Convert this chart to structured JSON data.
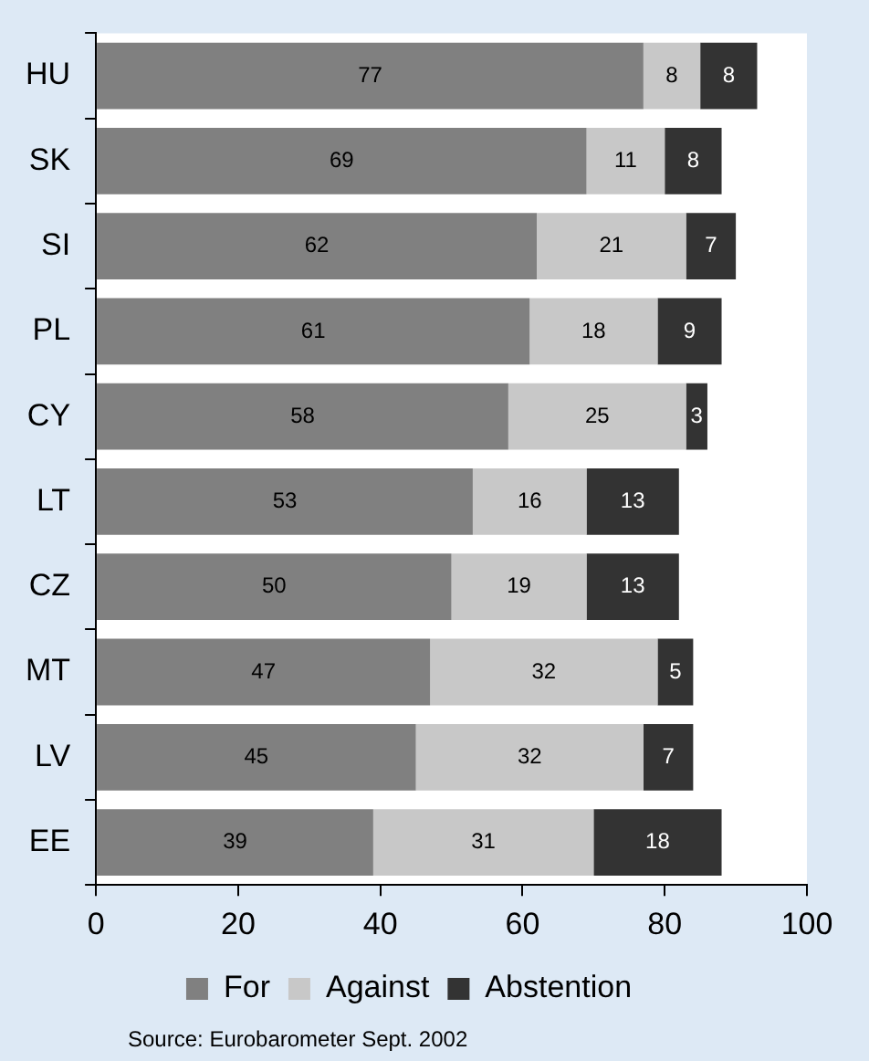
{
  "chart_data": {
    "type": "bar",
    "orientation": "horizontal",
    "stacked": true,
    "categories": [
      "HU",
      "SK",
      "SI",
      "PL",
      "CY",
      "LT",
      "CZ",
      "MT",
      "LV",
      "EE"
    ],
    "series": [
      {
        "name": "For",
        "color": "#808080",
        "values": [
          77,
          69,
          62,
          61,
          58,
          53,
          50,
          47,
          45,
          39
        ]
      },
      {
        "name": "Against",
        "color": "#c8c8c8",
        "values": [
          8,
          11,
          21,
          18,
          25,
          16,
          19,
          32,
          32,
          31
        ]
      },
      {
        "name": "Abstention",
        "color": "#333333",
        "values": [
          8,
          8,
          7,
          9,
          3,
          13,
          13,
          5,
          7,
          18
        ]
      }
    ],
    "xlim": [
      0,
      100
    ],
    "xticks": [
      0,
      20,
      40,
      60,
      80,
      100
    ],
    "grid": false,
    "legend": "bottom",
    "data_labels": true,
    "annotations": [
      "Source: Eurobarometer Sept. 2002"
    ]
  }
}
